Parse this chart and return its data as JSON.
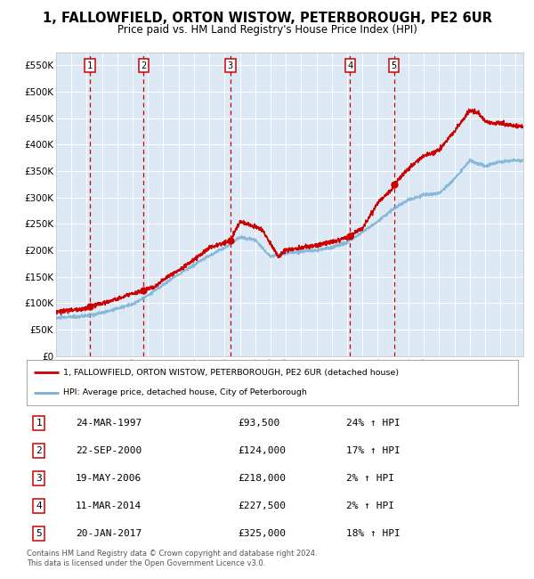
{
  "title": "1, FALLOWFIELD, ORTON WISTOW, PETERBOROUGH, PE2 6UR",
  "subtitle": "Price paid vs. HM Land Registry's House Price Index (HPI)",
  "title_fontsize": 10.5,
  "subtitle_fontsize": 8.5,
  "background_color": "#dce9f5",
  "plot_bg_color": "#dce9f5",
  "legend_line1": "1, FALLOWFIELD, ORTON WISTOW, PETERBOROUGH, PE2 6UR (detached house)",
  "legend_line2": "HPI: Average price, detached house, City of Peterborough",
  "footer": "Contains HM Land Registry data © Crown copyright and database right 2024.\nThis data is licensed under the Open Government Licence v3.0.",
  "sales": [
    {
      "num": 1,
      "date": "24-MAR-1997",
      "price": 93500,
      "pct": "24%",
      "dir": "↑",
      "x": 1997.22
    },
    {
      "num": 2,
      "date": "22-SEP-2000",
      "price": 124000,
      "pct": "17%",
      "dir": "↑",
      "x": 2000.72
    },
    {
      "num": 3,
      "date": "19-MAY-2006",
      "price": 218000,
      "pct": "2%",
      "dir": "↑",
      "x": 2006.38
    },
    {
      "num": 4,
      "date": "11-MAR-2014",
      "price": 227500,
      "pct": "2%",
      "dir": "↑",
      "x": 2014.19
    },
    {
      "num": 5,
      "date": "20-JAN-2017",
      "price": 325000,
      "pct": "18%",
      "dir": "↑",
      "x": 2017.05
    }
  ],
  "red_line_color": "#cc0000",
  "blue_line_color": "#7ab0d4",
  "dashed_line_color": "#cc0000",
  "dot_color": "#cc0000",
  "ylim": [
    0,
    575000
  ],
  "xlim": [
    1995,
    2025.5
  ],
  "yticks": [
    0,
    50000,
    100000,
    150000,
    200000,
    250000,
    300000,
    350000,
    400000,
    450000,
    500000,
    550000
  ],
  "ytick_labels": [
    "£0",
    "£50K",
    "£100K",
    "£150K",
    "£200K",
    "£250K",
    "£300K",
    "£350K",
    "£400K",
    "£450K",
    "£500K",
    "£550K"
  ],
  "xticks": [
    1995,
    1996,
    1997,
    1998,
    1999,
    2000,
    2001,
    2002,
    2003,
    2004,
    2005,
    2006,
    2007,
    2008,
    2009,
    2010,
    2011,
    2012,
    2013,
    2014,
    2015,
    2016,
    2017,
    2018,
    2019,
    2020,
    2021,
    2022,
    2023,
    2024,
    2025
  ]
}
